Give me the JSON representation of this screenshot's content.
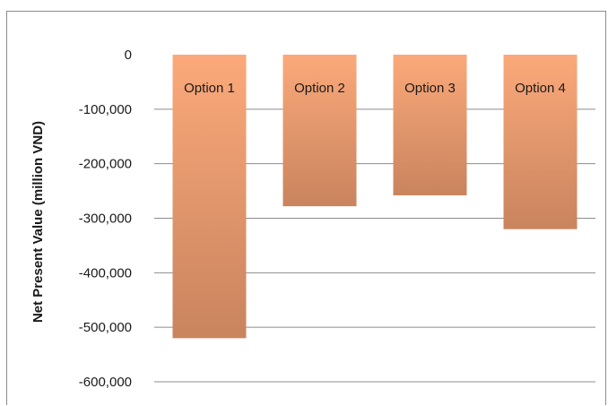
{
  "chart_data": {
    "type": "bar",
    "categories": [
      "Option 1",
      "Option 2",
      "Option 3",
      "Option 4"
    ],
    "values": [
      -520000,
      -278000,
      -258000,
      -320000
    ],
    "title": "",
    "xlabel": "",
    "ylabel": "Net Present Value (million VND)",
    "ylim": [
      -600000,
      0
    ],
    "yticks": [
      {
        "value": 0,
        "label": "0"
      },
      {
        "value": -100000,
        "label": "-100,000"
      },
      {
        "value": -200000,
        "label": "-200,000"
      },
      {
        "value": -300000,
        "label": "-300,000"
      },
      {
        "value": -400000,
        "label": "-400,000"
      },
      {
        "value": -500000,
        "label": "-500,000"
      },
      {
        "value": -600000,
        "label": "-600,000"
      }
    ],
    "grid": true,
    "legend": "none",
    "bar_label_position": "inside-top",
    "colors": {
      "bar_top": "#FBA97A",
      "bar_bottom": "#C9845E",
      "grid": "#8C8C8C"
    }
  }
}
